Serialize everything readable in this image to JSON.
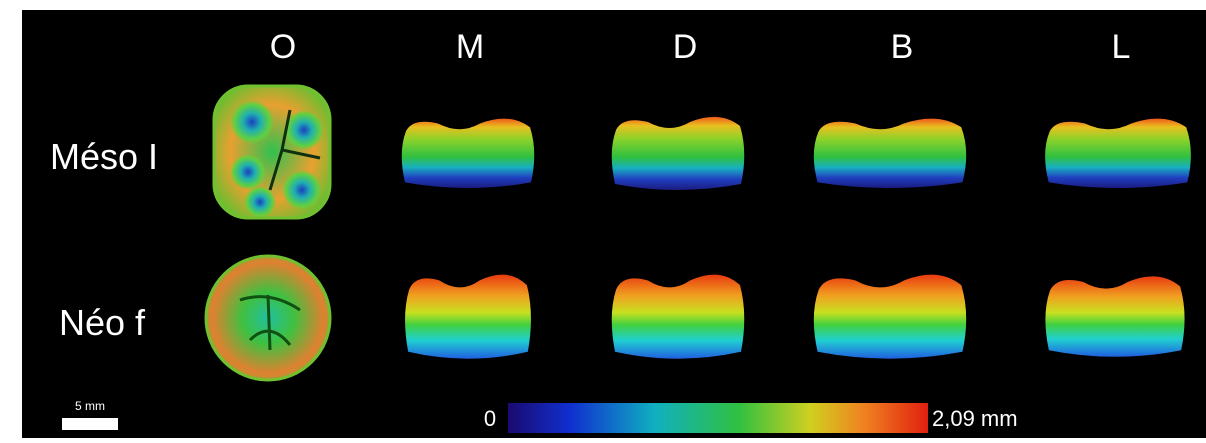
{
  "columns": [
    "O",
    "M",
    "D",
    "B",
    "L"
  ],
  "rows": [
    "Méso I",
    "Néo f"
  ],
  "scale_bar": "5 mm",
  "colorbar": {
    "min_label": "0",
    "max_label": "2,09 mm"
  }
}
